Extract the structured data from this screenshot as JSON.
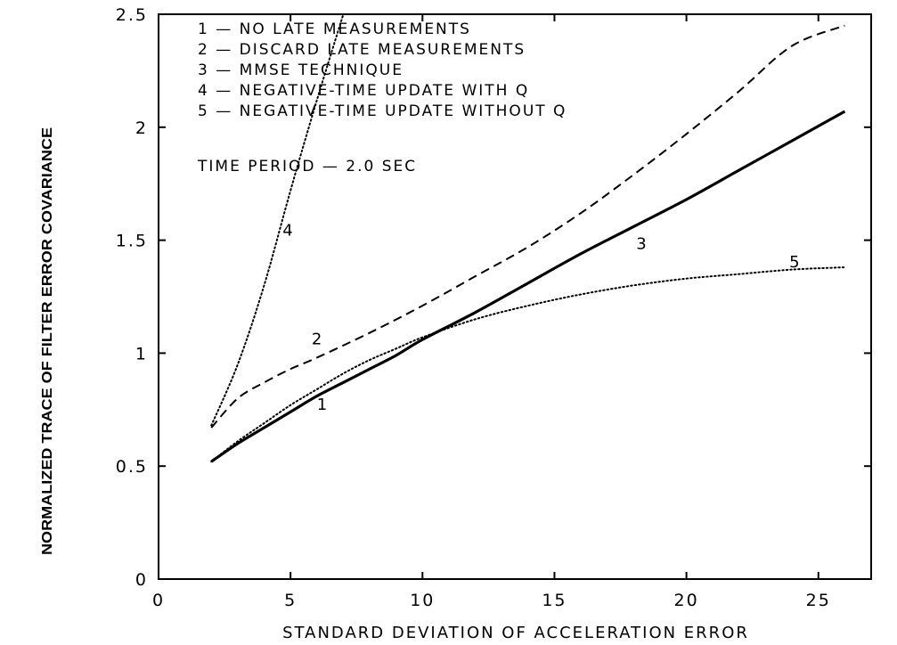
{
  "chart_data": {
    "type": "line",
    "xlabel": "STANDARD DEVIATION OF ACCELERATION ERROR",
    "ylabel": "NORMALIZED TRACE OF FILTER ERROR COVARIANCE",
    "xlim": [
      0,
      27
    ],
    "ylim": [
      0,
      2.5
    ],
    "xticks": [
      "0",
      "5",
      "10",
      "15",
      "20",
      "25"
    ],
    "yticks": [
      "0",
      "0.5",
      "1",
      "1.5",
      "2",
      "2.5"
    ],
    "grid": false,
    "legend": [
      "1 — NO LATE MEASUREMENTS",
      "2 — DISCARD LATE MEASUREMENTS",
      "3 — MMSE TECHNIQUE",
      "4 — NEGATIVE-TIME UPDATE WITH Q",
      "5 — NEGATIVE-TIME UPDATE WITHOUT Q"
    ],
    "annotation": "TIME PERIOD — 2.0 SEC",
    "series": [
      {
        "name": "1",
        "style": "solid",
        "label_at": [
          6.0,
          0.75
        ],
        "x": [
          2,
          3,
          4,
          5,
          6,
          7,
          8,
          9,
          10,
          12,
          14,
          16,
          18,
          20,
          22,
          24,
          26
        ],
        "y": [
          0.52,
          0.6,
          0.67,
          0.74,
          0.81,
          0.87,
          0.93,
          0.99,
          1.06,
          1.18,
          1.31,
          1.44,
          1.56,
          1.68,
          1.81,
          1.94,
          2.07
        ]
      },
      {
        "name": "2",
        "style": "dashed",
        "label_at": [
          5.8,
          1.04
        ],
        "x": [
          2,
          3,
          4,
          5,
          6,
          8,
          10,
          12,
          14,
          16,
          18,
          20,
          22,
          24,
          26
        ],
        "y": [
          0.67,
          0.8,
          0.87,
          0.93,
          0.98,
          1.09,
          1.21,
          1.34,
          1.47,
          1.62,
          1.79,
          1.97,
          2.16,
          2.36,
          2.45
        ]
      },
      {
        "name": "3",
        "style": "solid",
        "label_at": [
          18.1,
          1.46
        ],
        "x": [
          2,
          3,
          4,
          5,
          6,
          7,
          8,
          9,
          10,
          12,
          14,
          16,
          18,
          20,
          22,
          24,
          26
        ],
        "y": [
          0.52,
          0.6,
          0.67,
          0.74,
          0.81,
          0.87,
          0.93,
          0.99,
          1.06,
          1.18,
          1.31,
          1.44,
          1.56,
          1.68,
          1.81,
          1.94,
          2.07
        ]
      },
      {
        "name": "4",
        "style": "dotted",
        "label_at": [
          4.7,
          1.52
        ],
        "x": [
          2,
          3,
          4,
          5,
          6,
          7
        ],
        "y": [
          0.68,
          0.95,
          1.3,
          1.72,
          2.12,
          2.5
        ]
      },
      {
        "name": "5",
        "style": "dotted",
        "label_at": [
          23.9,
          1.38
        ],
        "x": [
          2,
          3,
          4,
          5,
          6,
          7,
          8,
          9,
          10,
          12,
          14,
          16,
          18,
          20,
          22,
          24,
          26
        ],
        "y": [
          0.52,
          0.61,
          0.69,
          0.77,
          0.84,
          0.91,
          0.97,
          1.02,
          1.07,
          1.15,
          1.21,
          1.26,
          1.3,
          1.33,
          1.35,
          1.37,
          1.38
        ]
      }
    ]
  }
}
